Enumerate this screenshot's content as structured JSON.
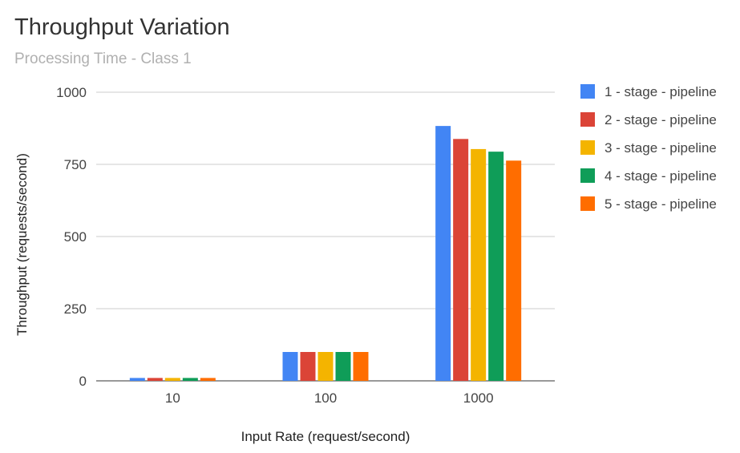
{
  "chart_data": {
    "type": "bar",
    "title": "Throughput Variation",
    "subtitle": "Processing Time - Class 1",
    "xlabel": "Input Rate (request/second)",
    "ylabel": "Throughput (requests/second)",
    "ylim": [
      0,
      1000
    ],
    "yticks": [
      "0",
      "250",
      "500",
      "750",
      "1000"
    ],
    "categories": [
      "10",
      "100",
      "1000"
    ],
    "series": [
      {
        "name": "1 - stage - pipeline",
        "color": "#4285f4",
        "values": [
          10,
          100,
          883
        ]
      },
      {
        "name": "2 - stage - pipeline",
        "color": "#db4437",
        "values": [
          10,
          100,
          838
        ]
      },
      {
        "name": "3 - stage - pipeline",
        "color": "#f4b400",
        "values": [
          10,
          100,
          803
        ]
      },
      {
        "name": "4 - stage - pipeline",
        "color": "#0f9d58",
        "values": [
          10,
          100,
          794
        ]
      },
      {
        "name": "5 - stage - pipeline",
        "color": "#ff6d00",
        "values": [
          10,
          100,
          763
        ]
      }
    ],
    "grid": true,
    "legend": "right"
  }
}
